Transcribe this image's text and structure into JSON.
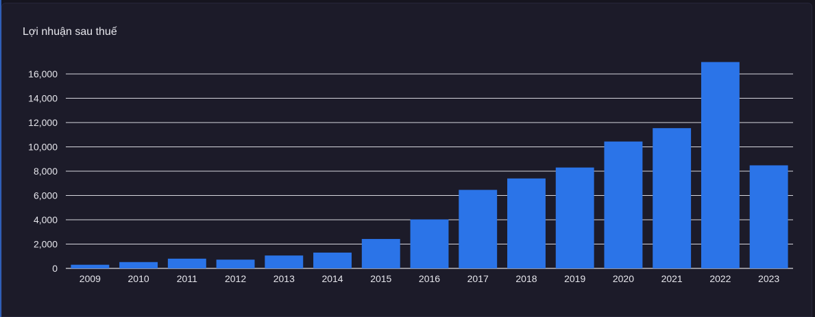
{
  "chart_data": {
    "type": "bar",
    "title": "Lợi nhuận sau thuế",
    "xlabel": "",
    "ylabel": "",
    "categories": [
      "2009",
      "2010",
      "2011",
      "2012",
      "2013",
      "2014",
      "2015",
      "2016",
      "2017",
      "2018",
      "2019",
      "2020",
      "2021",
      "2022",
      "2023"
    ],
    "values": [
      300,
      520,
      800,
      720,
      1060,
      1300,
      2420,
      4030,
      6460,
      7400,
      8300,
      10440,
      11540,
      16980,
      8480
    ],
    "ylim": [
      0,
      16000
    ],
    "yticks": [
      0,
      2000,
      4000,
      6000,
      8000,
      10000,
      12000,
      14000,
      16000
    ],
    "ytick_labels": [
      "0",
      "2,000",
      "4,000",
      "6,000",
      "8,000",
      "10,000",
      "12,000",
      "14,000",
      "16,000"
    ],
    "grid": true,
    "legend": "none",
    "colors": {
      "bar": "#2b74e8",
      "grid": "#d9d9e0",
      "text": "#e6e6ec",
      "background": "#1c1b29"
    }
  }
}
